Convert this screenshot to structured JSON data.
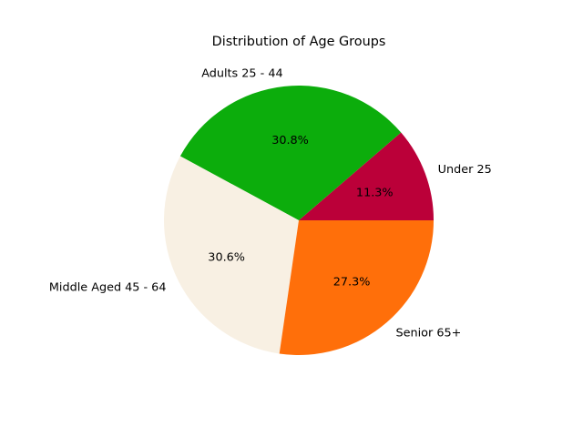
{
  "chart_data": {
    "type": "pie",
    "title": "Distribution of Age Groups",
    "categories": [
      "Under 25",
      "Adults 25 - 44",
      "Middle Aged 45 - 64",
      "Senior 65+"
    ],
    "values": [
      11.3,
      30.8,
      30.6,
      27.3
    ],
    "value_labels": [
      "11.3%",
      "30.8%",
      "30.6%",
      "27.3%"
    ],
    "colors": [
      "#bb0039",
      "#0cad0c",
      "#f8f0e3",
      "#ff6f0a"
    ],
    "start_angle_deg": 0,
    "direction": "counterclockwise",
    "legend": "none"
  }
}
